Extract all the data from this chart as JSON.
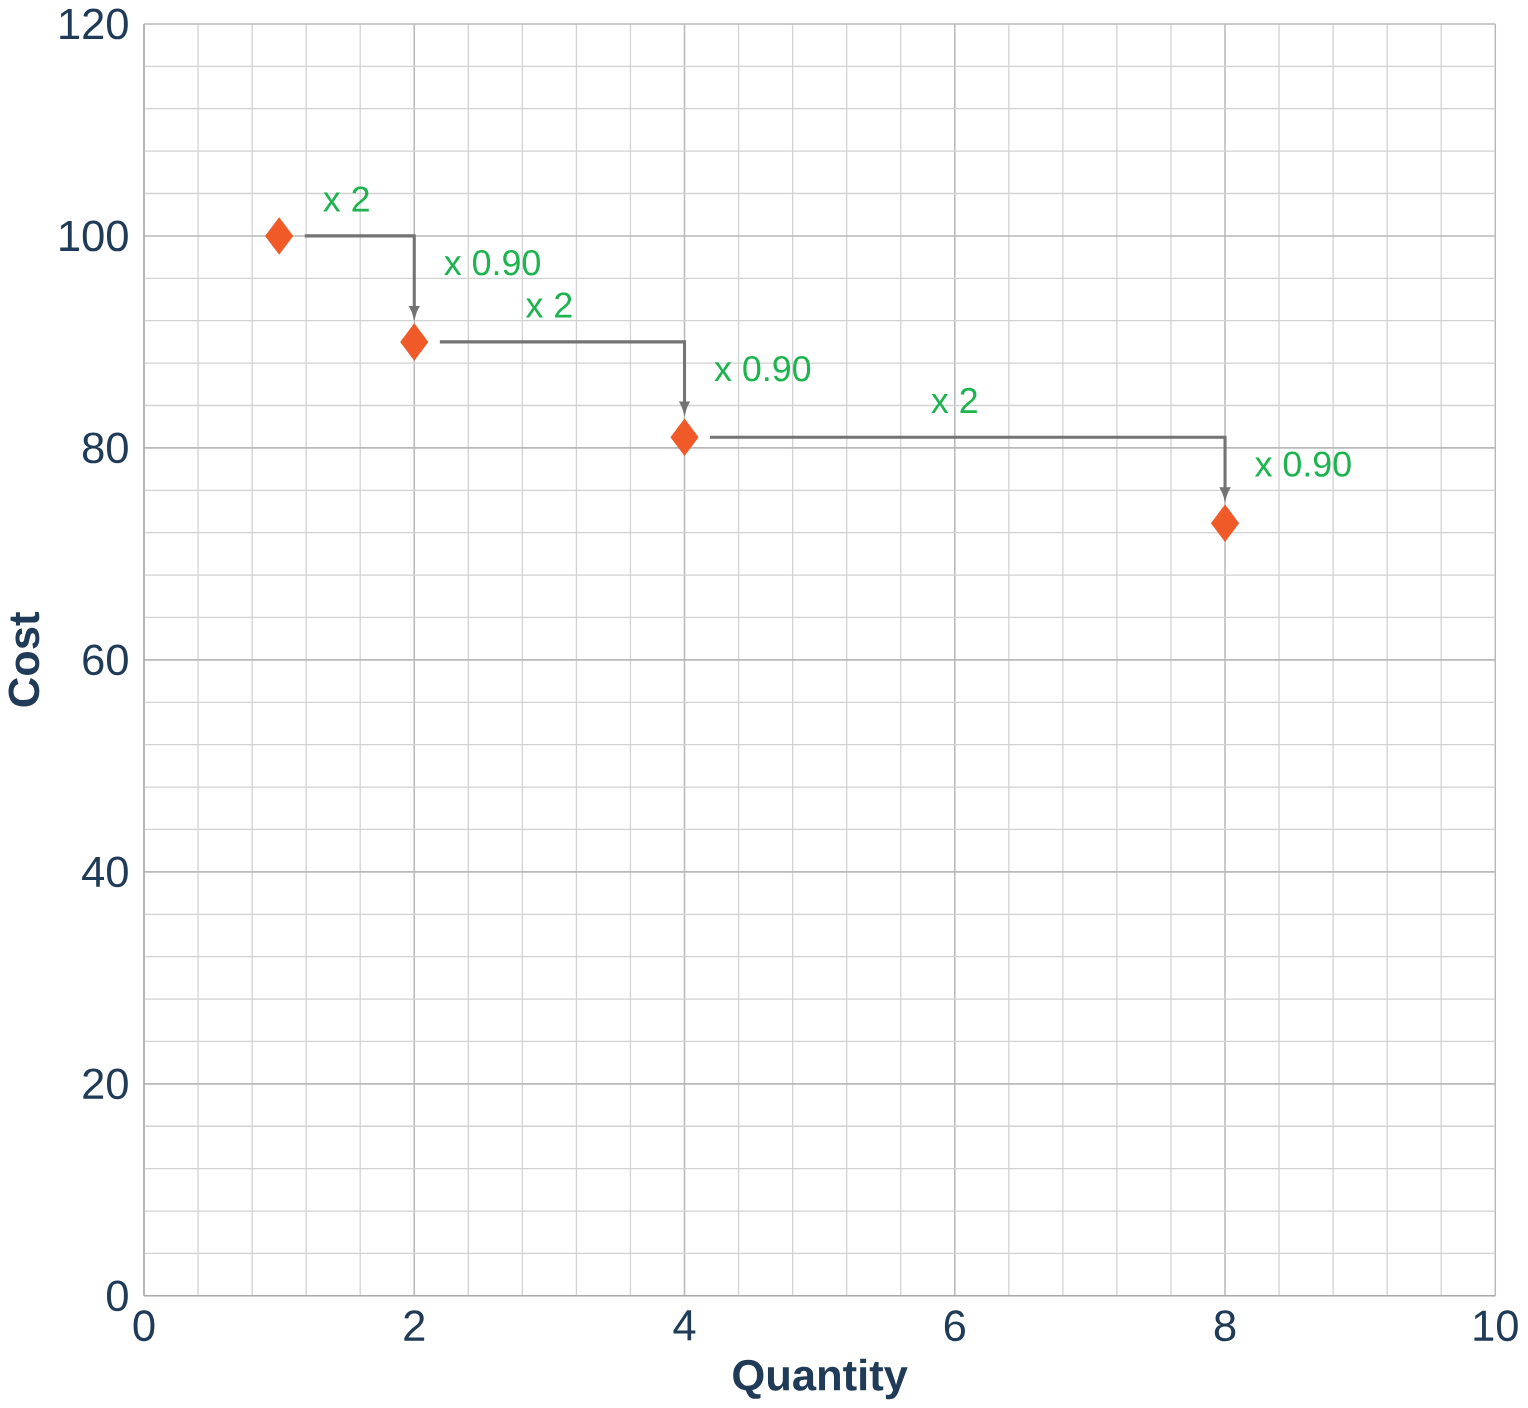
{
  "chart_data": {
    "type": "scatter",
    "xlabel": "Quantity",
    "ylabel": "Cost",
    "x": [
      1,
      2,
      4,
      8
    ],
    "series": [
      {
        "color": "#f05a28",
        "values": [
          100,
          90,
          81,
          72.9
        ]
      }
    ],
    "marker": "diamond",
    "xlim": [
      0,
      10
    ],
    "ylim": [
      0,
      120
    ],
    "xticks": [
      0,
      2,
      4,
      6,
      8,
      10
    ],
    "yticks": [
      0,
      20,
      40,
      60,
      80,
      100,
      120
    ],
    "grid": true,
    "annotations": [
      "x 2",
      "x 0.90",
      "x 2",
      "x 0.90",
      "x 2",
      "x 0.90"
    ]
  }
}
